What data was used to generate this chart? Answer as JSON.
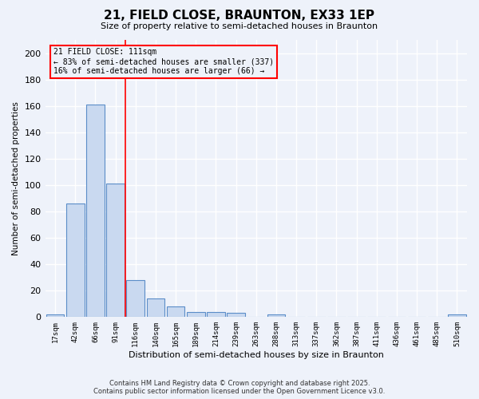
{
  "title": "21, FIELD CLOSE, BRAUNTON, EX33 1EP",
  "subtitle": "Size of property relative to semi-detached houses in Braunton",
  "xlabel": "Distribution of semi-detached houses by size in Braunton",
  "ylabel": "Number of semi-detached properties",
  "categories": [
    "17sqm",
    "42sqm",
    "66sqm",
    "91sqm",
    "116sqm",
    "140sqm",
    "165sqm",
    "189sqm",
    "214sqm",
    "239sqm",
    "263sqm",
    "288sqm",
    "313sqm",
    "337sqm",
    "362sqm",
    "387sqm",
    "411sqm",
    "436sqm",
    "461sqm",
    "485sqm",
    "510sqm"
  ],
  "values": [
    2,
    86,
    161,
    101,
    28,
    14,
    8,
    4,
    4,
    3,
    0,
    2,
    0,
    0,
    0,
    0,
    0,
    0,
    0,
    0,
    2
  ],
  "bar_color": "#c9d9f0",
  "bar_edge_color": "#5b8dc8",
  "red_line_index": 4.0,
  "annotation_title": "21 FIELD CLOSE: 111sqm",
  "annotation_line1": "← 83% of semi-detached houses are smaller (337)",
  "annotation_line2": "16% of semi-detached houses are larger (66) →",
  "background_color": "#eef2fa",
  "footer_line1": "Contains HM Land Registry data © Crown copyright and database right 2025.",
  "footer_line2": "Contains public sector information licensed under the Open Government Licence v3.0.",
  "ylim": [
    0,
    210
  ],
  "yticks": [
    0,
    20,
    40,
    60,
    80,
    100,
    120,
    140,
    160,
    180,
    200
  ]
}
